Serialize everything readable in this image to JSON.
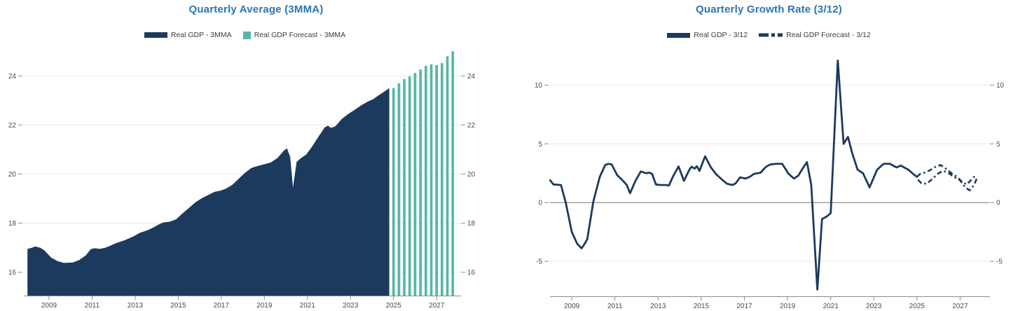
{
  "charts": [
    {
      "title": "Quarterly Average (3MMA)",
      "legend": [
        {
          "label": "Real GDP - 3MMA",
          "swatch": "navy-bar"
        },
        {
          "label": "Real GDP Forecast - 3MMA",
          "swatch": "teal-square"
        }
      ]
    },
    {
      "title": "Quarterly Growth Rate (3/12)",
      "legend": [
        {
          "label": "Real GDP - 3/12",
          "swatch": "navy-line"
        },
        {
          "label": "Real GDP Forecast - 3/12",
          "swatch": "navy-dashed-line"
        }
      ]
    }
  ],
  "chart_data": [
    {
      "type": "area",
      "title": "Quarterly Average (3MMA)",
      "xlabel": "",
      "ylabel": "",
      "x_ticks": [
        2009,
        2011,
        2013,
        2015,
        2017,
        2019,
        2021,
        2023,
        2025,
        2027
      ],
      "y_ticks": [
        16,
        18,
        20,
        22,
        24
      ],
      "xlim": [
        2007.83,
        2028.1
      ],
      "ylim": [
        15.05,
        25.15
      ],
      "grid": true,
      "zero_line": false,
      "legend_position": "top-center",
      "series": [
        {
          "name": "Real GDP - 3MMA",
          "style": "area",
          "color": "navy",
          "points": [
            [
              2008.0,
              16.95
            ],
            [
              2008.2,
              17.0
            ],
            [
              2008.35,
              17.05
            ],
            [
              2008.6,
              17.0
            ],
            [
              2008.8,
              16.88
            ],
            [
              2009.1,
              16.6
            ],
            [
              2009.4,
              16.45
            ],
            [
              2009.7,
              16.38
            ],
            [
              2010.1,
              16.4
            ],
            [
              2010.4,
              16.5
            ],
            [
              2010.7,
              16.68
            ],
            [
              2010.95,
              16.95
            ],
            [
              2011.15,
              16.98
            ],
            [
              2011.35,
              16.95
            ],
            [
              2011.6,
              17.0
            ],
            [
              2011.85,
              17.08
            ],
            [
              2012.1,
              17.18
            ],
            [
              2012.5,
              17.3
            ],
            [
              2012.9,
              17.45
            ],
            [
              2013.2,
              17.6
            ],
            [
              2013.6,
              17.72
            ],
            [
              2013.9,
              17.85
            ],
            [
              2014.1,
              17.95
            ],
            [
              2014.3,
              18.03
            ],
            [
              2014.6,
              18.06
            ],
            [
              2014.9,
              18.15
            ],
            [
              2015.2,
              18.4
            ],
            [
              2015.5,
              18.62
            ],
            [
              2015.8,
              18.85
            ],
            [
              2016.1,
              19.02
            ],
            [
              2016.4,
              19.15
            ],
            [
              2016.7,
              19.28
            ],
            [
              2016.95,
              19.32
            ],
            [
              2017.2,
              19.4
            ],
            [
              2017.5,
              19.55
            ],
            [
              2017.8,
              19.8
            ],
            [
              2018.1,
              20.05
            ],
            [
              2018.4,
              20.25
            ],
            [
              2018.7,
              20.33
            ],
            [
              2019.0,
              20.4
            ],
            [
              2019.3,
              20.47
            ],
            [
              2019.6,
              20.65
            ],
            [
              2019.9,
              20.95
            ],
            [
              2020.05,
              21.05
            ],
            [
              2020.2,
              20.7
            ],
            [
              2020.33,
              19.45
            ],
            [
              2020.5,
              20.5
            ],
            [
              2020.7,
              20.65
            ],
            [
              2020.95,
              20.8
            ],
            [
              2021.2,
              21.1
            ],
            [
              2021.5,
              21.5
            ],
            [
              2021.8,
              21.9
            ],
            [
              2021.95,
              21.97
            ],
            [
              2022.1,
              21.88
            ],
            [
              2022.3,
              21.95
            ],
            [
              2022.6,
              22.25
            ],
            [
              2022.9,
              22.45
            ],
            [
              2023.2,
              22.62
            ],
            [
              2023.5,
              22.8
            ],
            [
              2023.8,
              22.95
            ],
            [
              2024.05,
              23.05
            ],
            [
              2024.3,
              23.2
            ],
            [
              2024.55,
              23.35
            ],
            [
              2024.8,
              23.5
            ]
          ]
        },
        {
          "name": "Real GDP Forecast - 3MMA",
          "style": "bars",
          "color": "teal",
          "points": [
            [
              2025.0,
              23.5
            ],
            [
              2025.25,
              23.7
            ],
            [
              2025.5,
              23.87
            ],
            [
              2025.75,
              23.98
            ],
            [
              2026.0,
              24.12
            ],
            [
              2026.25,
              24.26
            ],
            [
              2026.5,
              24.41
            ],
            [
              2026.75,
              24.47
            ],
            [
              2027.0,
              24.44
            ],
            [
              2027.25,
              24.52
            ],
            [
              2027.5,
              24.8
            ],
            [
              2027.75,
              25.0
            ]
          ]
        }
      ]
    },
    {
      "type": "line",
      "title": "Quarterly Growth Rate (3/12)",
      "xlabel": "",
      "ylabel": "",
      "x_ticks": [
        2009,
        2011,
        2013,
        2015,
        2017,
        2019,
        2021,
        2023,
        2025,
        2027
      ],
      "y_ticks": [
        -5,
        0,
        5,
        10
      ],
      "xlim": [
        2007.99,
        2028.35
      ],
      "ylim": [
        -7.98,
        13.2
      ],
      "grid": true,
      "zero_line": true,
      "legend_position": "top-center",
      "series": [
        {
          "name": "Real GDP - 3/12",
          "style": "line",
          "color": "navy",
          "points": [
            [
              2008.0,
              1.9
            ],
            [
              2008.15,
              1.55
            ],
            [
              2008.5,
              1.5
            ],
            [
              2008.72,
              0.0
            ],
            [
              2009.0,
              -2.5
            ],
            [
              2009.25,
              -3.5
            ],
            [
              2009.45,
              -3.9
            ],
            [
              2009.6,
              -3.5
            ],
            [
              2009.72,
              -3.1
            ],
            [
              2010.0,
              0.1
            ],
            [
              2010.3,
              2.2
            ],
            [
              2010.55,
              3.2
            ],
            [
              2010.7,
              3.3
            ],
            [
              2010.85,
              3.25
            ],
            [
              2011.1,
              2.35
            ],
            [
              2011.35,
              1.9
            ],
            [
              2011.55,
              1.5
            ],
            [
              2011.7,
              0.8
            ],
            [
              2011.95,
              1.85
            ],
            [
              2012.2,
              2.65
            ],
            [
              2012.45,
              2.5
            ],
            [
              2012.6,
              2.55
            ],
            [
              2012.72,
              2.45
            ],
            [
              2012.9,
              1.55
            ],
            [
              2013.1,
              1.5
            ],
            [
              2013.35,
              1.5
            ],
            [
              2013.5,
              1.45
            ],
            [
              2013.7,
              2.25
            ],
            [
              2013.95,
              3.08
            ],
            [
              2014.2,
              1.85
            ],
            [
              2014.45,
              2.8
            ],
            [
              2014.55,
              3.05
            ],
            [
              2014.7,
              2.9
            ],
            [
              2014.8,
              3.1
            ],
            [
              2014.92,
              2.7
            ],
            [
              2015.18,
              3.94
            ],
            [
              2015.45,
              3.0
            ],
            [
              2015.7,
              2.4
            ],
            [
              2016.0,
              1.9
            ],
            [
              2016.2,
              1.6
            ],
            [
              2016.45,
              1.5
            ],
            [
              2016.6,
              1.65
            ],
            [
              2016.8,
              2.15
            ],
            [
              2017.05,
              2.05
            ],
            [
              2017.25,
              2.2
            ],
            [
              2017.45,
              2.45
            ],
            [
              2017.75,
              2.55
            ],
            [
              2018.0,
              3.05
            ],
            [
              2018.2,
              3.25
            ],
            [
              2018.45,
              3.3
            ],
            [
              2018.75,
              3.3
            ],
            [
              2019.05,
              2.45
            ],
            [
              2019.3,
              2.05
            ],
            [
              2019.5,
              2.3
            ],
            [
              2019.7,
              2.9
            ],
            [
              2019.9,
              3.45
            ],
            [
              2020.1,
              1.5
            ],
            [
              2020.38,
              -7.4
            ],
            [
              2020.6,
              -1.4
            ],
            [
              2020.8,
              -1.2
            ],
            [
              2021.0,
              -0.9
            ],
            [
              2021.33,
              12.1
            ],
            [
              2021.6,
              5.0
            ],
            [
              2021.8,
              5.6
            ],
            [
              2022.0,
              4.2
            ],
            [
              2022.25,
              2.8
            ],
            [
              2022.5,
              2.5
            ],
            [
              2022.8,
              1.3
            ],
            [
              2023.15,
              2.8
            ],
            [
              2023.45,
              3.3
            ],
            [
              2023.75,
              3.3
            ],
            [
              2024.05,
              3.0
            ],
            [
              2024.25,
              3.15
            ],
            [
              2024.6,
              2.8
            ],
            [
              2024.85,
              2.4
            ],
            [
              2025.0,
              2.2
            ]
          ]
        },
        {
          "name": "Real GDP Forecast - 3/12",
          "style": "dashed-line",
          "color": "navy",
          "paths": [
            [
              [
                2025.0,
                2.2
              ],
              [
                2025.15,
                2.45
              ],
              [
                2025.35,
                2.55
              ],
              [
                2025.6,
                2.75
              ],
              [
                2025.9,
                3.1
              ],
              [
                2026.1,
                3.2
              ],
              [
                2026.3,
                2.95
              ],
              [
                2026.6,
                2.5
              ],
              [
                2026.85,
                2.2
              ],
              [
                2027.1,
                1.75
              ],
              [
                2027.3,
                1.55
              ],
              [
                2027.5,
                1.9
              ],
              [
                2027.75,
                2.4
              ]
            ],
            [
              [
                2025.05,
                1.95
              ],
              [
                2025.2,
                1.65
              ],
              [
                2025.45,
                1.6
              ],
              [
                2025.7,
                2.0
              ],
              [
                2026.0,
                2.5
              ],
              [
                2026.2,
                2.7
              ],
              [
                2026.4,
                2.6
              ],
              [
                2026.7,
                2.2
              ],
              [
                2027.0,
                1.9
              ],
              [
                2027.25,
                1.25
              ],
              [
                2027.45,
                1.05
              ],
              [
                2027.65,
                1.5
              ],
              [
                2027.8,
                2.2
              ]
            ]
          ]
        }
      ]
    }
  ],
  "colors": {
    "navy": "#1c3a5e",
    "teal": "#57b7a6",
    "title_blue": "#2c74b8",
    "grid": "#e9e9e9",
    "axis": "#8c8c8c",
    "zero_line": "#737373",
    "tick_text": "#4a4a4a"
  }
}
